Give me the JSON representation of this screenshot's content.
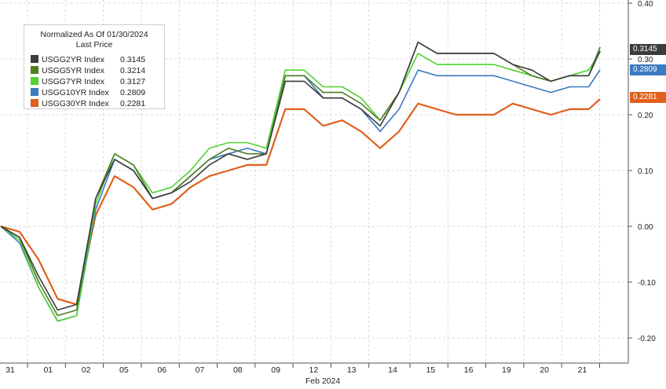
{
  "chart_data": {
    "type": "line",
    "legend": {
      "title": "Normalized As Of 01/30/2024",
      "subtitle": "Last Price",
      "placement": "top-left"
    },
    "x_tick_labels": [
      "31",
      "01",
      "02",
      "05",
      "06",
      "07",
      "08",
      "09",
      "12",
      "13",
      "14",
      "15",
      "16",
      "19",
      "20",
      "21"
    ],
    "x_axis_label": "Feb 2024",
    "y_ticks": [
      -0.2,
      -0.1,
      0.0,
      0.1,
      0.2,
      0.3,
      0.4
    ],
    "y_tick_labels": [
      "-0.20",
      "-0.10",
      "0.00",
      "0.10",
      "0.20",
      "0.30",
      "0.40"
    ],
    "ylim": [
      -0.225,
      0.405
    ],
    "grid": true,
    "x": [
      0,
      0.5,
      1,
      1.5,
      2,
      2.5,
      3,
      3.5,
      4,
      4.5,
      5,
      5.5,
      6,
      6.5,
      7,
      7.5,
      8,
      8.5,
      9,
      9.5,
      10,
      10.5,
      11,
      11.5,
      12,
      12.5,
      13,
      13.5,
      14,
      14.5,
      15,
      15.5,
      15.8
    ],
    "series": [
      {
        "name": "USGG2YR Index",
        "last_price": "0.3145",
        "color": "#3c3c3c",
        "values": [
          0,
          -0.02,
          -0.09,
          -0.15,
          -0.14,
          0.05,
          0.12,
          0.1,
          0.05,
          0.06,
          0.08,
          0.11,
          0.13,
          0.12,
          0.13,
          0.26,
          0.26,
          0.23,
          0.23,
          0.21,
          0.18,
          0.24,
          0.33,
          0.31,
          0.31,
          0.31,
          0.31,
          0.29,
          0.28,
          0.26,
          0.27,
          0.27,
          0.3145
        ]
      },
      {
        "name": "USGG5YR Index",
        "last_price": "0.3214",
        "color": "#4e7d1f",
        "values": [
          0,
          -0.02,
          -0.1,
          -0.16,
          -0.15,
          0.05,
          0.13,
          0.11,
          0.05,
          0.06,
          0.09,
          0.12,
          0.14,
          0.13,
          0.13,
          0.27,
          0.27,
          0.24,
          0.24,
          0.22,
          0.19,
          0.24,
          0.33,
          0.31,
          0.31,
          0.31,
          0.31,
          0.29,
          0.27,
          0.26,
          0.27,
          0.27,
          0.3214
        ]
      },
      {
        "name": "USGG7YR Index",
        "last_price": "0.3127",
        "color": "#4fd232",
        "values": [
          0,
          -0.025,
          -0.11,
          -0.17,
          -0.16,
          0.04,
          0.13,
          0.11,
          0.06,
          0.07,
          0.1,
          0.14,
          0.15,
          0.15,
          0.14,
          0.28,
          0.28,
          0.25,
          0.25,
          0.23,
          0.19,
          0.24,
          0.31,
          0.29,
          0.29,
          0.29,
          0.29,
          0.28,
          0.27,
          0.26,
          0.27,
          0.28,
          0.3127
        ]
      },
      {
        "name": "USGG10YR Index",
        "last_price": "0.2809",
        "color": "#3a7abf",
        "values": [
          0,
          -0.03,
          -0.11,
          -0.17,
          -0.16,
          0.03,
          0.12,
          0.1,
          0.05,
          0.06,
          0.09,
          0.12,
          0.13,
          0.14,
          0.13,
          0.27,
          0.27,
          0.23,
          0.23,
          0.21,
          0.17,
          0.21,
          0.28,
          0.27,
          0.27,
          0.27,
          0.27,
          0.26,
          0.25,
          0.24,
          0.25,
          0.25,
          0.2809
        ]
      },
      {
        "name": "USGG30YR Index",
        "last_price": "0.2281",
        "color": "#e0601d",
        "values": [
          0,
          -0.01,
          -0.06,
          -0.13,
          -0.14,
          0.02,
          0.09,
          0.07,
          0.03,
          0.04,
          0.07,
          0.09,
          0.1,
          0.11,
          0.11,
          0.21,
          0.21,
          0.18,
          0.19,
          0.17,
          0.14,
          0.17,
          0.22,
          0.21,
          0.2,
          0.2,
          0.2,
          0.22,
          0.21,
          0.2,
          0.21,
          0.21,
          0.2281
        ]
      }
    ]
  }
}
